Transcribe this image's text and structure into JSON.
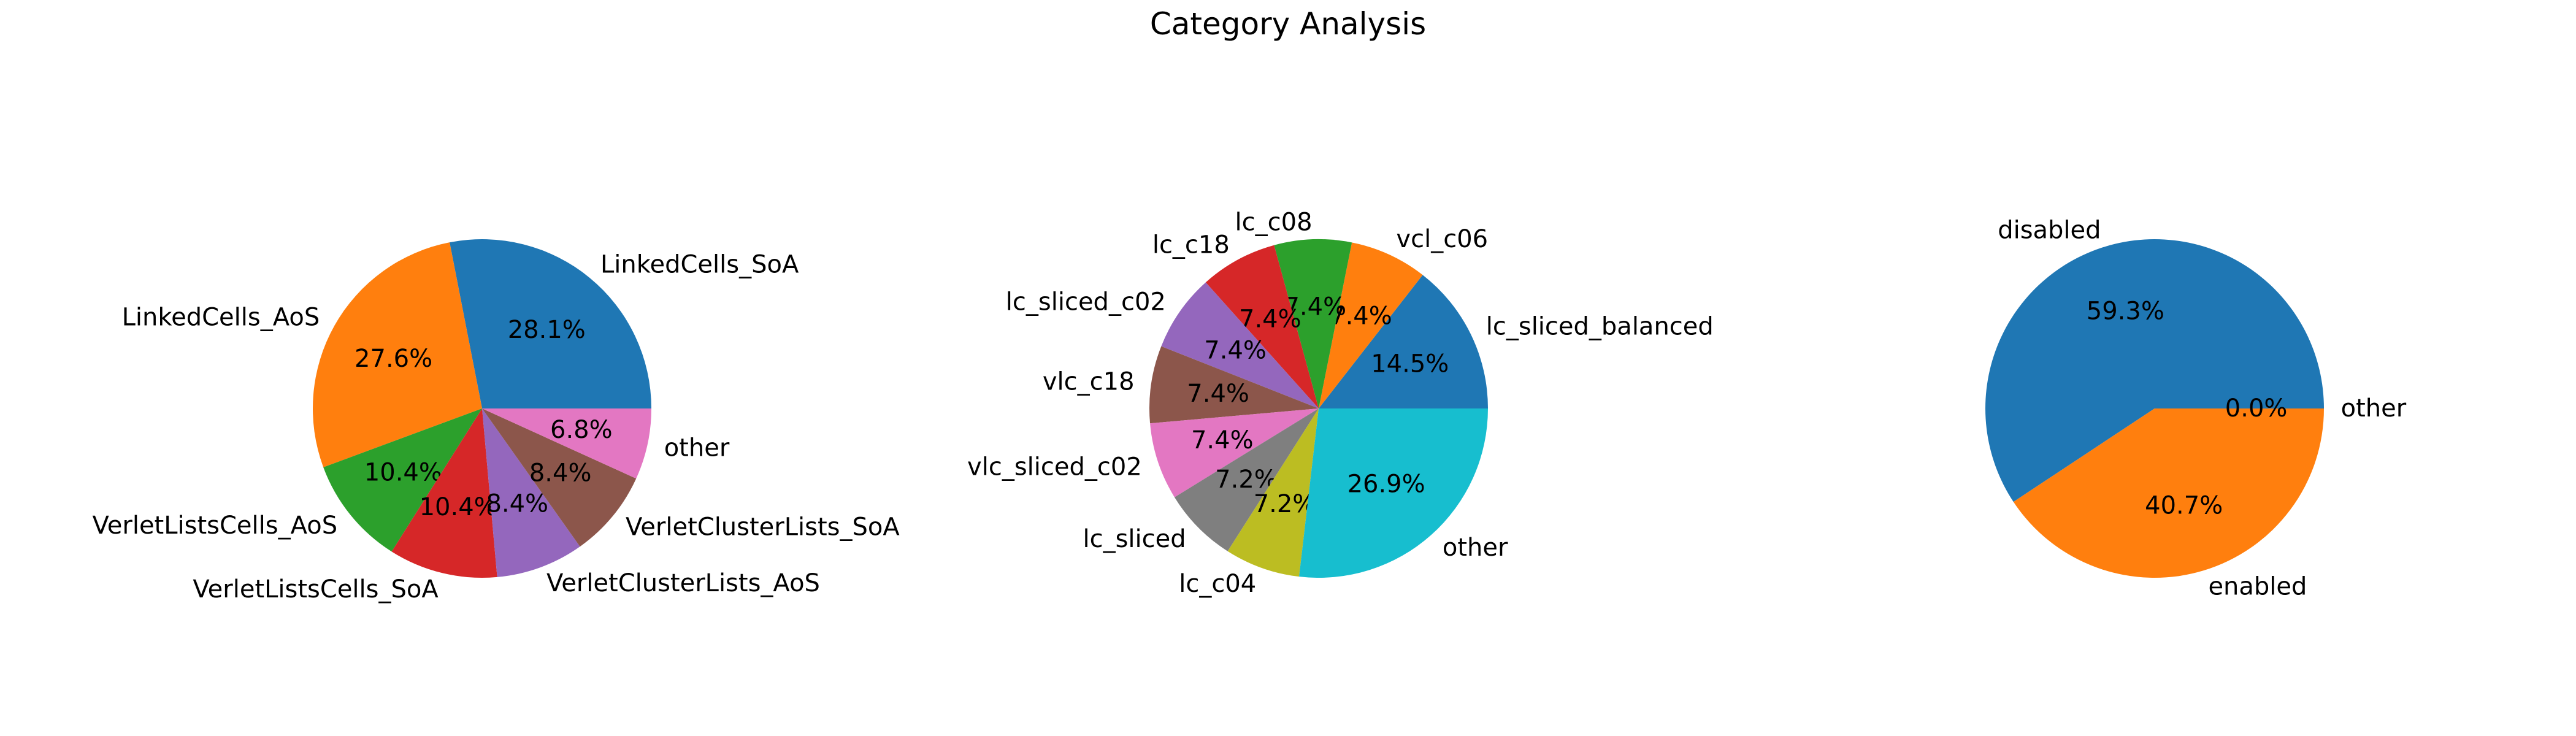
{
  "figure": {
    "title": "Category Analysis"
  },
  "chart_data": [
    {
      "type": "pie",
      "labels": [
        "LinkedCells_SoA",
        "LinkedCells_AoS",
        "VerletListsCells_AoS",
        "VerletListsCells_SoA",
        "VerletClusterLists_AoS",
        "VerletClusterLists_SoA",
        "other"
      ],
      "values": [
        28.1,
        27.6,
        10.4,
        10.4,
        8.4,
        8.4,
        6.8
      ],
      "pct_labels": [
        "28.1%",
        "27.6%",
        "10.4%",
        "10.4%",
        "8.4%",
        "8.4%",
        "6.8%"
      ],
      "colors": [
        "#1f77b4",
        "#ff7f0e",
        "#2ca02c",
        "#d62728",
        "#9467bd",
        "#8c564b",
        "#e377c2"
      ]
    },
    {
      "type": "pie",
      "labels": [
        "lc_sliced_balanced",
        "vcl_c06",
        "lc_c08",
        "lc_c18",
        "lc_sliced_c02",
        "vlc_c18",
        "vlc_sliced_c02",
        "lc_sliced",
        "lc_c04",
        "other"
      ],
      "values": [
        14.5,
        7.4,
        7.4,
        7.4,
        7.4,
        7.4,
        7.4,
        7.2,
        7.2,
        26.9
      ],
      "pct_labels": [
        "14.5%",
        "7.4%",
        "7.4%",
        "7.4%",
        "7.4%",
        "7.4%",
        "7.4%",
        "7.2%",
        "7.2%",
        "26.9%"
      ],
      "colors": [
        "#1f77b4",
        "#ff7f0e",
        "#2ca02c",
        "#d62728",
        "#9467bd",
        "#8c564b",
        "#e377c2",
        "#7f7f7f",
        "#bcbd22",
        "#17becf"
      ]
    },
    {
      "type": "pie",
      "labels": [
        "disabled",
        "enabled",
        "other"
      ],
      "values": [
        59.3,
        40.7,
        0.0
      ],
      "pct_labels": [
        "59.3%",
        "40.7%",
        "0.0%"
      ],
      "colors": [
        "#1f77b4",
        "#ff7f0e",
        "#2ca02c"
      ]
    }
  ]
}
